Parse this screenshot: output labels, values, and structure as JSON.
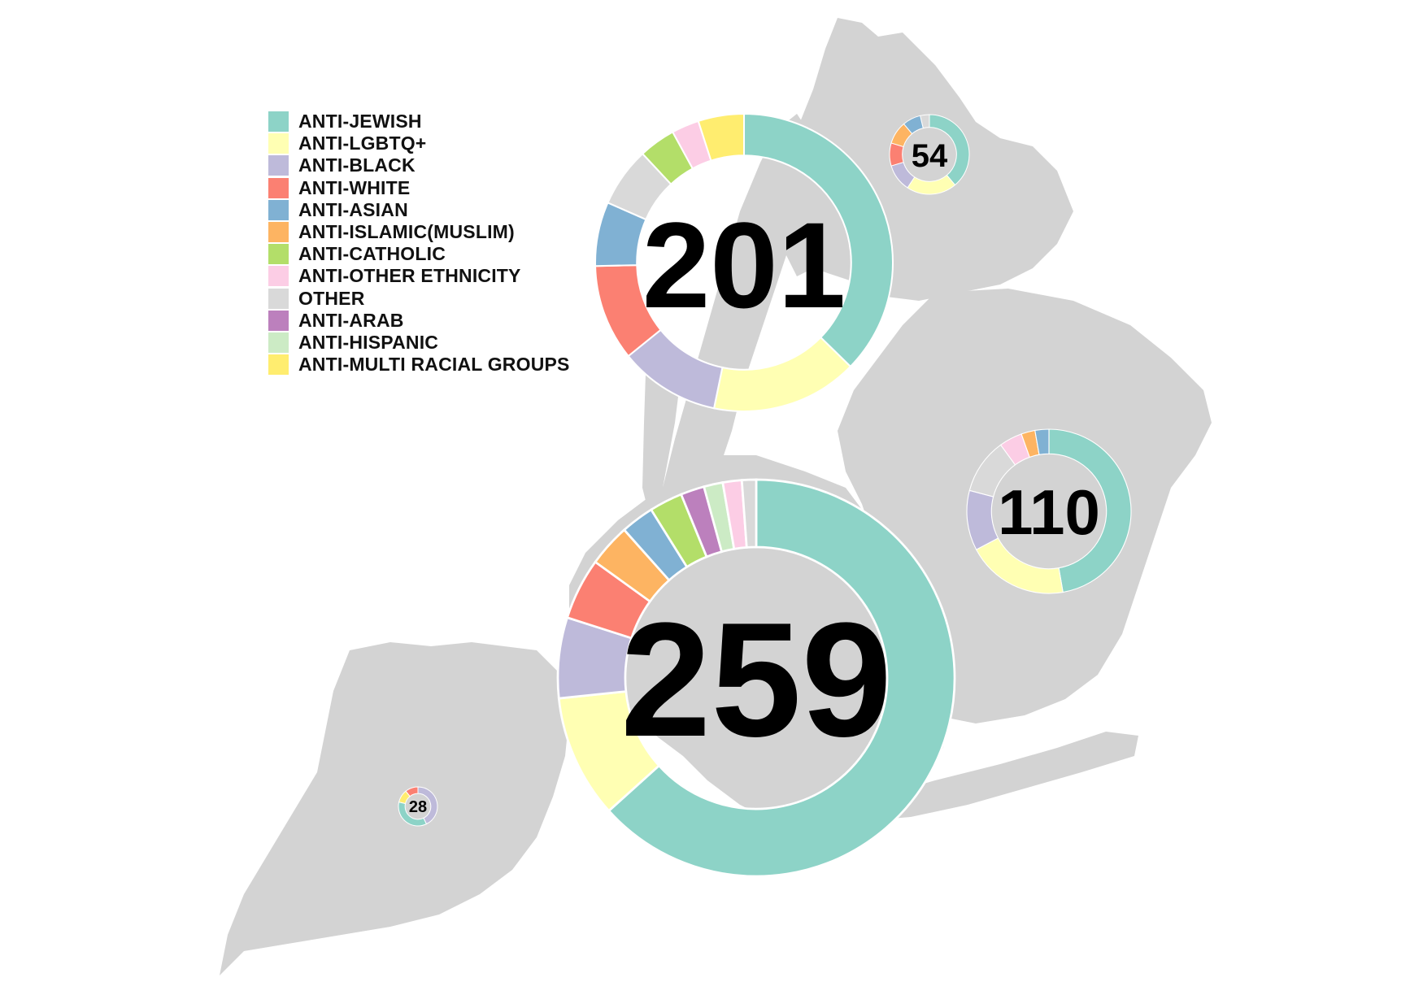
{
  "legend": {
    "items": [
      {
        "key": "anti-jewish",
        "label": "ANTI-JEWISH",
        "color": "#8dd3c7"
      },
      {
        "key": "anti-lgbtq",
        "label": "ANTI-LGBTQ+",
        "color": "#ffffb3"
      },
      {
        "key": "anti-black",
        "label": "ANTI-BLACK",
        "color": "#bebada"
      },
      {
        "key": "anti-white",
        "label": "ANTI-WHITE",
        "color": "#fb8072"
      },
      {
        "key": "anti-asian",
        "label": "ANTI-ASIAN",
        "color": "#80b1d3"
      },
      {
        "key": "anti-islamic",
        "label": "ANTI-ISLAMIC(MUSLIM)",
        "color": "#fdb462"
      },
      {
        "key": "anti-catholic",
        "label": "ANTI-CATHOLIC",
        "color": "#b3de69"
      },
      {
        "key": "anti-other-ethnicity",
        "label": "ANTI-OTHER ETHNICITY",
        "color": "#fccde5"
      },
      {
        "key": "other",
        "label": "OTHER",
        "color": "#d9d9d9"
      },
      {
        "key": "anti-arab",
        "label": "ANTI-ARAB",
        "color": "#bc80bd"
      },
      {
        "key": "anti-hispanic",
        "label": "ANTI-HISPANIC",
        "color": "#ccebc5"
      },
      {
        "key": "anti-multi-racial",
        "label": "ANTI-MULTI RACIAL GROUPS",
        "color": "#ffed6f"
      }
    ]
  },
  "map": {
    "land_color": "#d3d3d3",
    "borough_totals": [
      {
        "key": "manhattan",
        "total": 201
      },
      {
        "key": "bronx",
        "total": 54
      },
      {
        "key": "queens",
        "total": 110
      },
      {
        "key": "brooklyn",
        "total": 259
      },
      {
        "key": "staten-island",
        "total": 28
      }
    ]
  },
  "chart_data": {
    "type": "pie",
    "donuts": [
      {
        "borough_key": "manhattan",
        "total": 201,
        "slices": [
          {
            "category": "anti-jewish",
            "value": 75
          },
          {
            "category": "anti-lgbtq",
            "value": 32
          },
          {
            "category": "anti-black",
            "value": 22
          },
          {
            "category": "anti-white",
            "value": 21
          },
          {
            "category": "anti-asian",
            "value": 14
          },
          {
            "category": "other",
            "value": 13
          },
          {
            "category": "anti-catholic",
            "value": 8
          },
          {
            "category": "anti-other-ethnicity",
            "value": 6
          },
          {
            "category": "anti-multi-racial",
            "value": 10
          }
        ]
      },
      {
        "borough_key": "bronx",
        "total": 54,
        "slices": [
          {
            "category": "anti-jewish",
            "value": 21
          },
          {
            "category": "anti-lgbtq",
            "value": 11
          },
          {
            "category": "anti-black",
            "value": 6
          },
          {
            "category": "anti-white",
            "value": 5
          },
          {
            "category": "anti-islamic",
            "value": 5
          },
          {
            "category": "anti-asian",
            "value": 4
          },
          {
            "category": "other",
            "value": 2
          }
        ]
      },
      {
        "borough_key": "queens",
        "total": 110,
        "slices": [
          {
            "category": "anti-jewish",
            "value": 52
          },
          {
            "category": "anti-lgbtq",
            "value": 22
          },
          {
            "category": "anti-black",
            "value": 13
          },
          {
            "category": "other",
            "value": 12
          },
          {
            "category": "anti-other-ethnicity",
            "value": 5
          },
          {
            "category": "anti-islamic",
            "value": 3
          },
          {
            "category": "anti-asian",
            "value": 3
          }
        ]
      },
      {
        "borough_key": "brooklyn",
        "total": 259,
        "slices": [
          {
            "category": "anti-jewish",
            "value": 164
          },
          {
            "category": "anti-lgbtq",
            "value": 26
          },
          {
            "category": "anti-black",
            "value": 17
          },
          {
            "category": "anti-white",
            "value": 13
          },
          {
            "category": "anti-islamic",
            "value": 9
          },
          {
            "category": "anti-asian",
            "value": 7
          },
          {
            "category": "anti-catholic",
            "value": 7
          },
          {
            "category": "anti-arab",
            "value": 5
          },
          {
            "category": "anti-hispanic",
            "value": 4
          },
          {
            "category": "anti-other-ethnicity",
            "value": 4
          },
          {
            "category": "other",
            "value": 3
          }
        ]
      },
      {
        "borough_key": "staten-island",
        "total": 28,
        "slices": [
          {
            "category": "anti-black",
            "value": 12
          },
          {
            "category": "anti-jewish",
            "value": 10
          },
          {
            "category": "anti-multi-racial",
            "value": 3
          },
          {
            "category": "anti-white",
            "value": 3
          }
        ]
      }
    ]
  }
}
